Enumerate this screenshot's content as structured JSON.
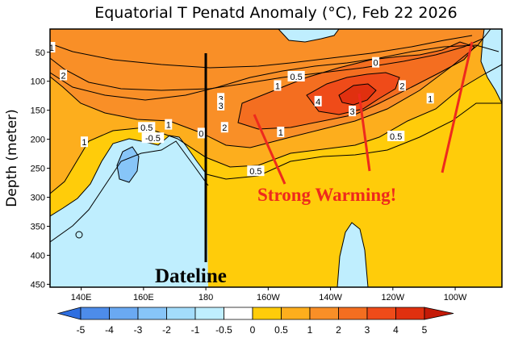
{
  "chart_data": {
    "type": "heatmap",
    "title": "Equatorial T Penatd Anomaly (°C), Feb 22 2026",
    "ylabel": "Depth (meter)",
    "xlabel": "",
    "xlim": [
      130,
      275
    ],
    "ylim": [
      455,
      10
    ],
    "x_ticks": [
      {
        "lon": 140,
        "label": "140E"
      },
      {
        "lon": 160,
        "label": "160E"
      },
      {
        "lon": 180,
        "label": "180"
      },
      {
        "lon": 200,
        "label": "160W"
      },
      {
        "lon": 220,
        "label": "140W"
      },
      {
        "lon": 240,
        "label": "120W"
      },
      {
        "lon": 260,
        "label": "100W"
      }
    ],
    "y_ticks": [
      50,
      100,
      150,
      200,
      250,
      300,
      350,
      400,
      450
    ],
    "colorbar": {
      "ticks": [
        "-5",
        "-4",
        "-3",
        "-2",
        "-1",
        "-0.5",
        "0",
        "0.5",
        "1",
        "2",
        "3",
        "4",
        "5"
      ],
      "colors": [
        "#2f6fe0",
        "#4d8cea",
        "#6aa9f2",
        "#87c5f8",
        "#a3dcfb",
        "#bfeefe",
        "#ffffff",
        "#ffcc0a",
        "#fdae1d",
        "#f98f27",
        "#f46e20",
        "#ef4b19",
        "#e0300f",
        "#c41a07"
      ]
    },
    "contour_labels": [
      {
        "text": "1",
        "lon": 130.5,
        "depth": 42
      },
      {
        "text": "2",
        "lon": 134.3,
        "depth": 90
      },
      {
        "text": "0.5",
        "lon": 209,
        "depth": 92
      },
      {
        "text": "1",
        "lon": 203,
        "depth": 108
      },
      {
        "text": "2",
        "lon": 243,
        "depth": 108
      },
      {
        "text": "1",
        "lon": 252,
        "depth": 130
      },
      {
        "text": "3",
        "lon": 184.8,
        "depth": 130
      },
      {
        "text": "3",
        "lon": 184.8,
        "depth": 142
      },
      {
        "text": "4",
        "lon": 216,
        "depth": 135
      },
      {
        "text": "3",
        "lon": 227,
        "depth": 152
      },
      {
        "text": "0.5",
        "lon": 161,
        "depth": 180
      },
      {
        "text": "1",
        "lon": 168,
        "depth": 175
      },
      {
        "text": "-0.5",
        "lon": 163,
        "depth": 198
      },
      {
        "text": "0",
        "lon": 178.5,
        "depth": 190
      },
      {
        "text": "2",
        "lon": 186,
        "depth": 180
      },
      {
        "text": "1",
        "lon": 204,
        "depth": 188
      },
      {
        "text": "0.5",
        "lon": 241,
        "depth": 195
      },
      {
        "text": "1",
        "lon": 141,
        "depth": 205
      },
      {
        "text": "0.5",
        "lon": 196,
        "depth": 255
      },
      {
        "text": "0",
        "lon": 234.5,
        "depth": 68
      }
    ],
    "annotations": {
      "dateline": {
        "text": "Dateline",
        "lon": 180
      },
      "warming": {
        "text": "Strong Warming!"
      }
    }
  }
}
